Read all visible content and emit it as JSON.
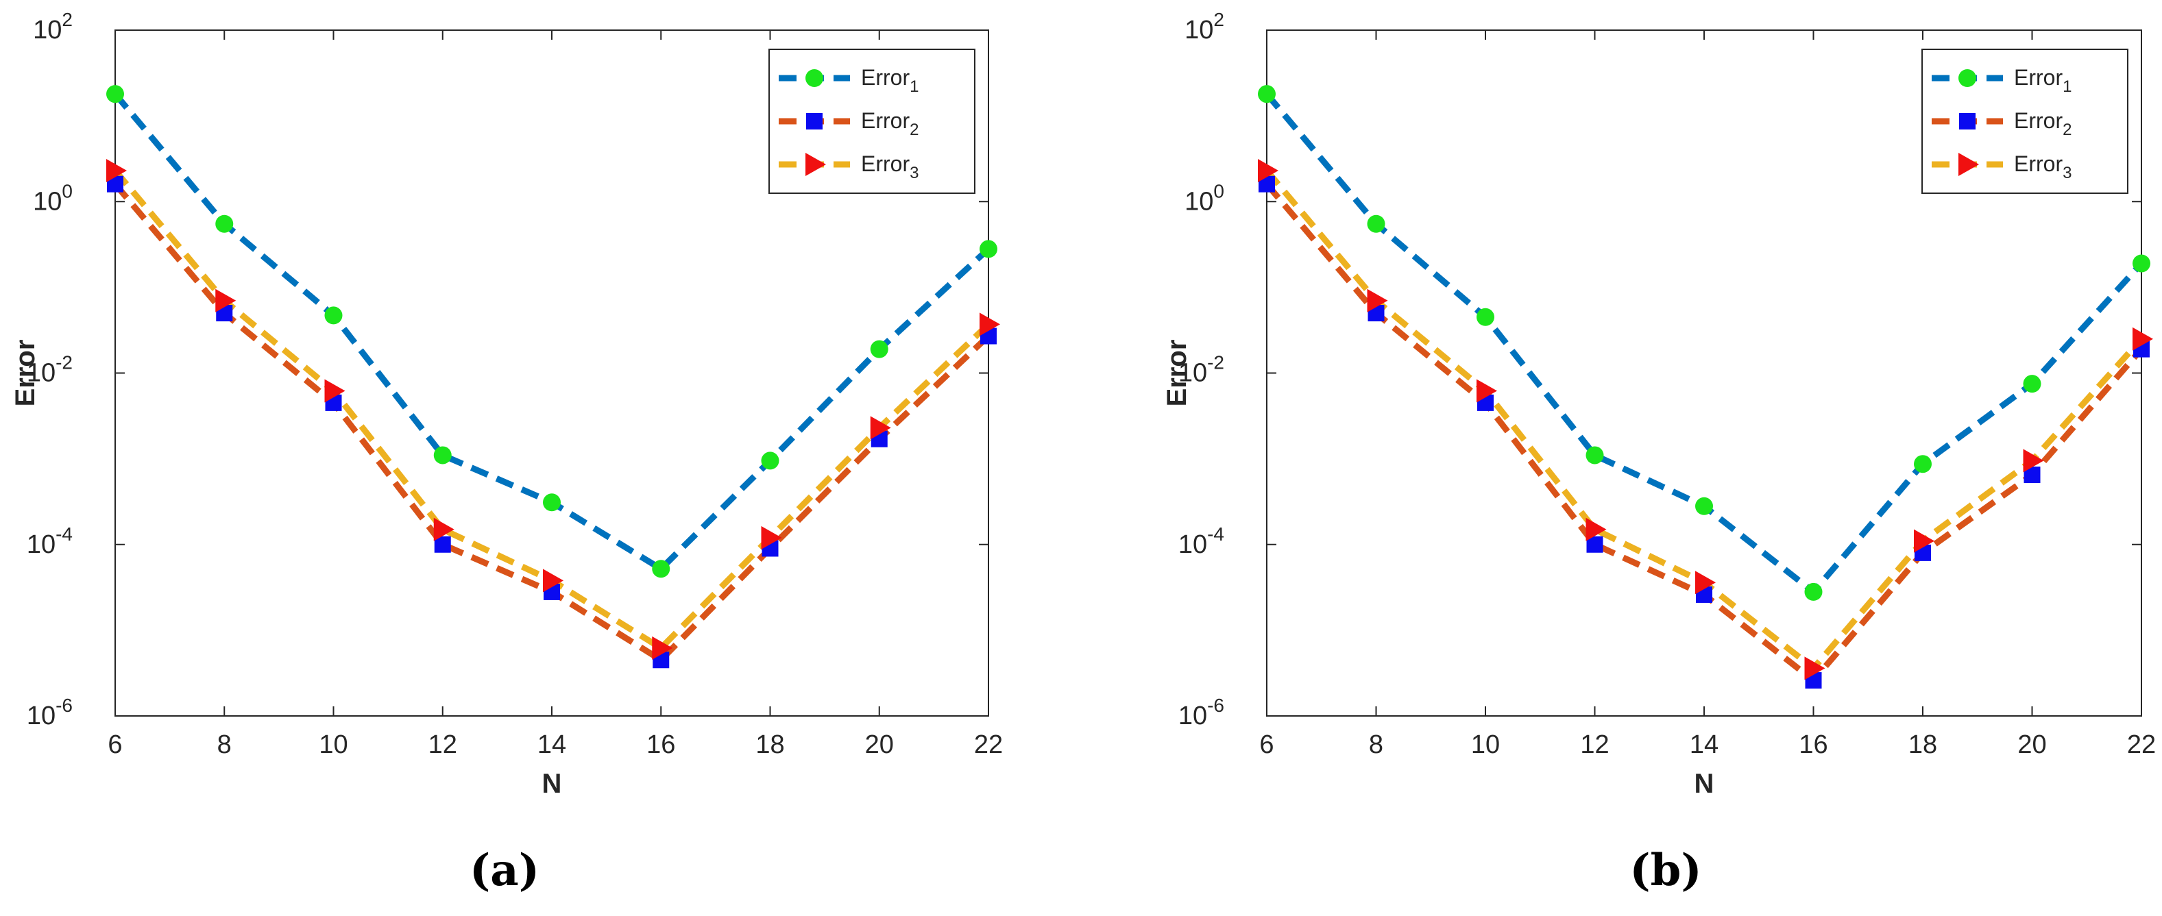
{
  "chart_data": [
    {
      "type": "line",
      "panel_label": "(a)",
      "xlabel": "N",
      "ylabel": "Error",
      "xlim": [
        6,
        22
      ],
      "ylim": [
        1e-06,
        100
      ],
      "yscale": "log",
      "x": [
        6,
        8,
        10,
        12,
        14,
        16,
        18,
        20,
        22
      ],
      "x_ticks": [
        "6",
        "8",
        "10",
        "12",
        "14",
        "16",
        "18",
        "20",
        "22"
      ],
      "y_ticks": [
        {
          "value": 1e-06,
          "base": "10",
          "exp": "-6"
        },
        {
          "value": 0.0001,
          "base": "10",
          "exp": "-4"
        },
        {
          "value": 0.01,
          "base": "10",
          "exp": "-2"
        },
        {
          "value": 1,
          "base": "10",
          "exp": "0"
        },
        {
          "value": 100,
          "base": "10",
          "exp": "2"
        }
      ],
      "legend_position": "top-right",
      "series": [
        {
          "name": "Error",
          "subscript": "1",
          "color": "#0072BD",
          "marker": "circle",
          "marker_color": "#1CE51C",
          "values": [
            18,
            0.55,
            0.047,
            0.0011,
            0.00031,
            5.2e-05,
            0.00095,
            0.019,
            0.28
          ]
        },
        {
          "name": "Error",
          "subscript": "2",
          "color": "#D95319",
          "marker": "square",
          "marker_color": "#0A0AF0",
          "values": [
            1.6,
            0.05,
            0.0045,
            0.0001,
            2.8e-05,
            4.5e-06,
            9e-05,
            0.0017,
            0.027
          ]
        },
        {
          "name": "Error",
          "subscript": "3",
          "color": "#EDB120",
          "marker": "triangle-right",
          "marker_color": "#F01010",
          "values": [
            2.3,
            0.07,
            0.0062,
            0.00015,
            3.8e-05,
            6.2e-06,
            0.00012,
            0.0023,
            0.037
          ]
        }
      ]
    },
    {
      "type": "line",
      "panel_label": "(b)",
      "xlabel": "N",
      "ylabel": "Error",
      "xlim": [
        6,
        22
      ],
      "ylim": [
        1e-06,
        100
      ],
      "yscale": "log",
      "x": [
        6,
        8,
        10,
        12,
        14,
        16,
        18,
        20,
        22
      ],
      "x_ticks": [
        "6",
        "8",
        "10",
        "12",
        "14",
        "16",
        "18",
        "20",
        "22"
      ],
      "y_ticks": [
        {
          "value": 1e-06,
          "base": "10",
          "exp": "-6"
        },
        {
          "value": 0.0001,
          "base": "10",
          "exp": "-4"
        },
        {
          "value": 0.01,
          "base": "10",
          "exp": "-2"
        },
        {
          "value": 1,
          "base": "10",
          "exp": "0"
        },
        {
          "value": 100,
          "base": "10",
          "exp": "2"
        }
      ],
      "legend_position": "top-right",
      "series": [
        {
          "name": "Error",
          "subscript": "1",
          "color": "#0072BD",
          "marker": "circle",
          "marker_color": "#1CE51C",
          "values": [
            18,
            0.55,
            0.045,
            0.0011,
            0.00028,
            2.8e-05,
            0.00087,
            0.0075,
            0.19
          ]
        },
        {
          "name": "Error",
          "subscript": "2",
          "color": "#D95319",
          "marker": "square",
          "marker_color": "#0A0AF0",
          "values": [
            1.6,
            0.05,
            0.0045,
            0.0001,
            2.6e-05,
            2.6e-06,
            8e-05,
            0.00065,
            0.019
          ]
        },
        {
          "name": "Error",
          "subscript": "3",
          "color": "#EDB120",
          "marker": "triangle-right",
          "marker_color": "#F01010",
          "values": [
            2.3,
            0.07,
            0.0062,
            0.00015,
            3.6e-05,
            3.6e-06,
            0.00011,
            0.00095,
            0.025
          ]
        }
      ]
    }
  ]
}
